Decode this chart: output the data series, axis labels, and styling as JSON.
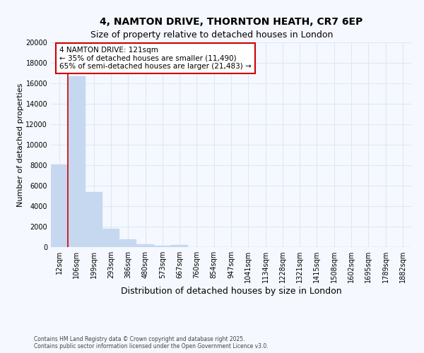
{
  "title": "4, NAMTON DRIVE, THORNTON HEATH, CR7 6EP",
  "subtitle": "Size of property relative to detached houses in London",
  "ylabel": "Number of detached properties",
  "xlabel": "Distribution of detached houses by size in London",
  "footer_line1": "Contains HM Land Registry data © Crown copyright and database right 2025.",
  "footer_line2": "Contains public sector information licensed under the Open Government Licence v3.0.",
  "categories": [
    "12sqm",
    "106sqm",
    "199sqm",
    "293sqm",
    "386sqm",
    "480sqm",
    "573sqm",
    "667sqm",
    "760sqm",
    "854sqm",
    "947sqm",
    "1041sqm",
    "1134sqm",
    "1228sqm",
    "1321sqm",
    "1415sqm",
    "1508sqm",
    "1602sqm",
    "1695sqm",
    "1789sqm",
    "1882sqm"
  ],
  "values": [
    8050,
    16700,
    5400,
    1800,
    750,
    300,
    150,
    200,
    0,
    0,
    0,
    0,
    0,
    0,
    0,
    0,
    0,
    0,
    0,
    0,
    0
  ],
  "bar_color": "#c5d8f0",
  "bar_edge_color": "#c5d8f0",
  "red_line_x": 0.5,
  "ylim": [
    0,
    20000
  ],
  "yticks": [
    0,
    2000,
    4000,
    6000,
    8000,
    10000,
    12000,
    14000,
    16000,
    18000,
    20000
  ],
  "annotation_text": "4 NAMTON DRIVE: 121sqm\n← 35% of detached houses are smaller (11,490)\n65% of semi-detached houses are larger (21,483) →",
  "annotation_box_color": "#ffffff",
  "annotation_box_edge": "#cc0000",
  "bg_color": "#f5f8ff",
  "grid_color": "#dde8f5",
  "title_fontsize": 10,
  "subtitle_fontsize": 9,
  "tick_fontsize": 7,
  "ylabel_fontsize": 8,
  "xlabel_fontsize": 9,
  "ann_fontsize": 7.5
}
